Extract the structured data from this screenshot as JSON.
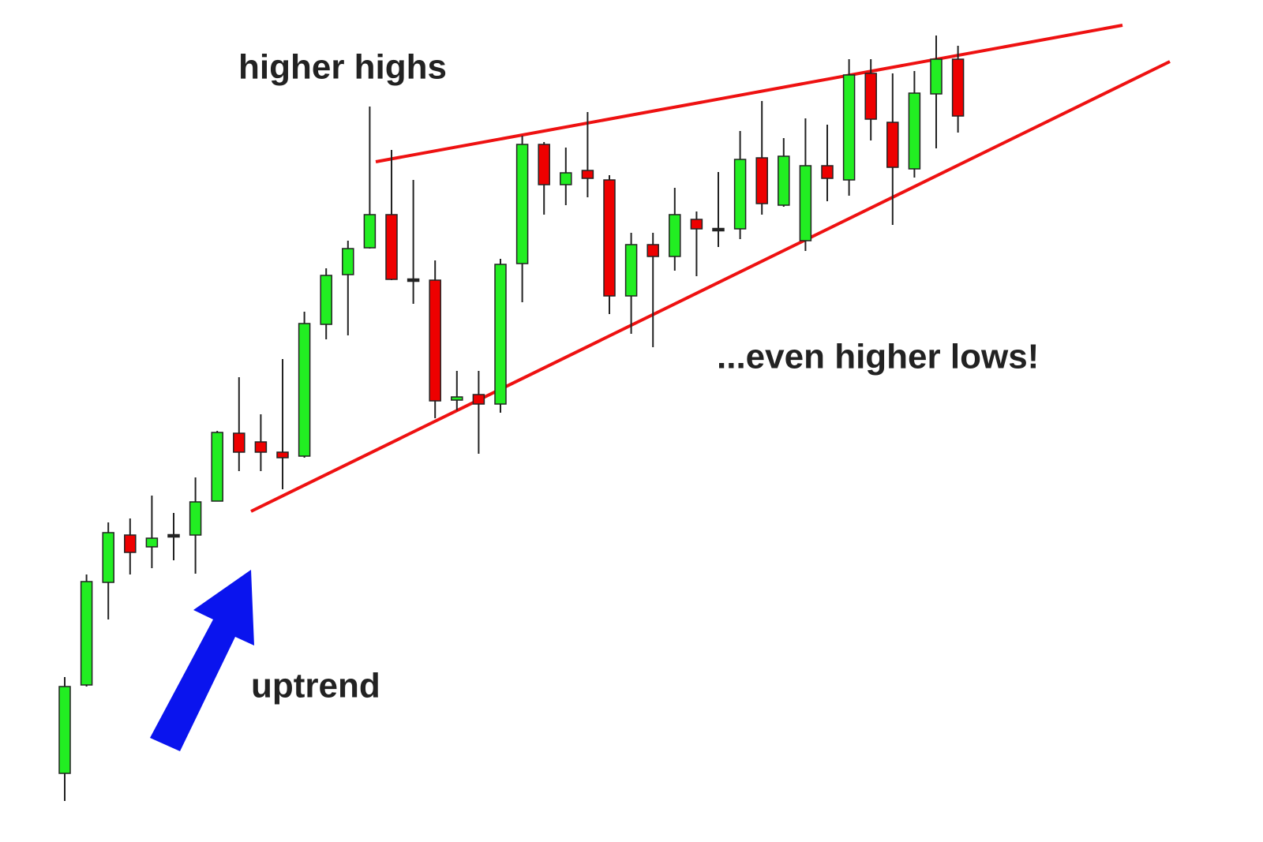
{
  "chart_data": {
    "type": "candlestick",
    "annotations": [
      "higher highs",
      "...even higher lows!",
      "uptrend"
    ],
    "up_color": "#22ee22",
    "down_color": "#ee0000",
    "ylim": [
      0,
      106.7
    ],
    "open": [
      8.7,
      19.9,
      32.9,
      38.9,
      37.4,
      38.8,
      38.9,
      43.2,
      51.8,
      50.7,
      49.4,
      48.9,
      65.6,
      71.9,
      75.3,
      79.5,
      71.2,
      71.2,
      56.0,
      56.7,
      55.5,
      73.3,
      88.4,
      83.3,
      85.1,
      83.9,
      69.2,
      75.7,
      74.2,
      78.9,
      77.6,
      77.7,
      86.7,
      80.7,
      76.2,
      85.7,
      83.9,
      97.4,
      91.2,
      85.3,
      94.8,
      99.2
    ],
    "high": [
      20.9,
      33.9,
      40.5,
      41.0,
      43.9,
      41.7,
      46.2,
      52.1,
      58.9,
      54.2,
      61.2,
      67.2,
      72.7,
      76.2,
      93.2,
      87.7,
      83.9,
      73.7,
      59.7,
      59.7,
      73.9,
      89.5,
      88.7,
      88.0,
      92.5,
      84.5,
      77.2,
      77.2,
      82.9,
      79.9,
      84.9,
      90.1,
      93.9,
      89.2,
      91.7,
      90.9,
      99.2,
      99.2,
      97.4,
      97.7,
      102.2,
      100.9
    ],
    "low": [
      5.2,
      19.7,
      28.2,
      33.9,
      34.7,
      35.7,
      34.0,
      43.2,
      47.0,
      47.0,
      44.7,
      48.7,
      63.7,
      64.2,
      75.2,
      71.2,
      68.2,
      53.7,
      54.7,
      49.2,
      54.4,
      68.4,
      79.5,
      80.7,
      81.7,
      66.9,
      64.4,
      62.7,
      72.4,
      71.7,
      75.4,
      76.4,
      79.5,
      80.5,
      74.9,
      81.2,
      81.9,
      88.9,
      78.2,
      84.2,
      87.9,
      89.9
    ],
    "close": [
      19.7,
      33.0,
      39.2,
      36.7,
      38.5,
      38.8,
      43.1,
      51.9,
      49.4,
      49.4,
      48.7,
      65.7,
      71.8,
      75.2,
      79.5,
      71.3,
      71.2,
      55.9,
      56.4,
      55.5,
      73.2,
      88.4,
      83.3,
      84.8,
      84.1,
      69.2,
      75.7,
      74.2,
      79.5,
      77.7,
      77.6,
      86.5,
      80.9,
      86.9,
      85.7,
      84.1,
      97.2,
      91.6,
      85.5,
      94.9,
      99.2,
      92.0
    ]
  }
}
